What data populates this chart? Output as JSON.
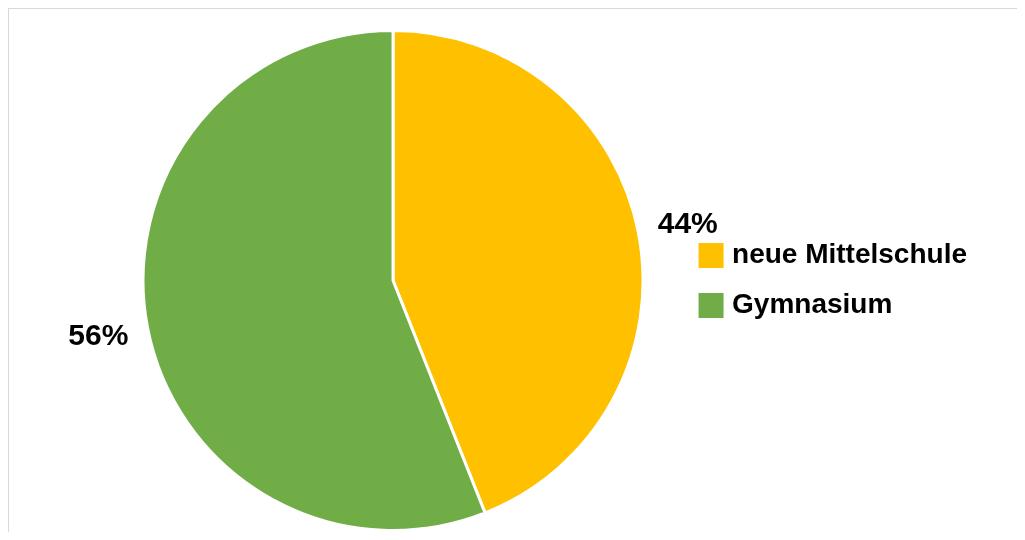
{
  "chart_data": {
    "type": "pie",
    "categories": [
      "neue Mittelschule",
      "Gymnasium"
    ],
    "values": [
      44,
      56
    ],
    "colors": [
      "#ffc000",
      "#70ad47"
    ],
    "value_labels": [
      "44%",
      "56%"
    ],
    "legend": "right"
  }
}
